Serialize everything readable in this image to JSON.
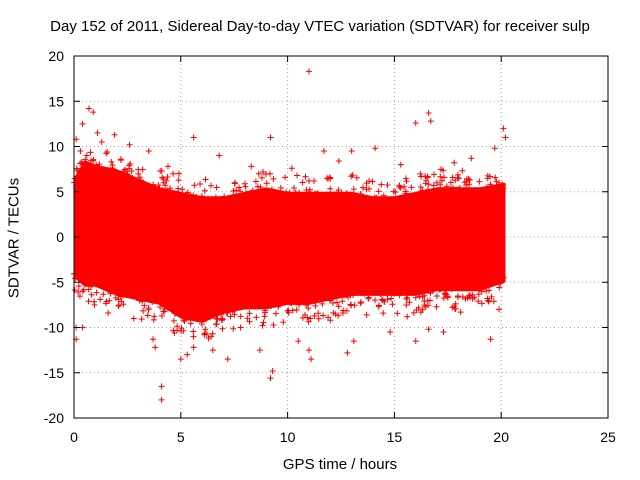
{
  "chart_data": {
    "type": "scatter",
    "title": "Day 152 of 2011, Sidereal Day-to-day VTEC variation (SDTVAR) for receiver sulp",
    "xlabel": "GPS time / hours",
    "ylabel": "SDTVAR / TECUs",
    "xlim": [
      0,
      25
    ],
    "ylim": [
      -20,
      20
    ],
    "xticks": [
      0,
      5,
      10,
      15,
      20,
      25
    ],
    "yticks": [
      -20,
      -15,
      -10,
      -5,
      0,
      5,
      10,
      15,
      20
    ],
    "grid": true,
    "marker": "+",
    "color": "#ff0000",
    "series": [
      {
        "name": "SDTVAR",
        "bulk": [
          {
            "x": 0.0,
            "ymin": -4.5,
            "ymax": 6.5
          },
          {
            "x": 0.5,
            "ymin": -5.5,
            "ymax": 8.5
          },
          {
            "x": 1.0,
            "ymin": -5.5,
            "ymax": 8.0
          },
          {
            "x": 2.0,
            "ymin": -6.5,
            "ymax": 7.5
          },
          {
            "x": 3.0,
            "ymin": -7.0,
            "ymax": 6.5
          },
          {
            "x": 4.0,
            "ymin": -7.5,
            "ymax": 5.5
          },
          {
            "x": 5.0,
            "ymin": -9.0,
            "ymax": 5.0
          },
          {
            "x": 6.0,
            "ymin": -9.5,
            "ymax": 4.5
          },
          {
            "x": 7.0,
            "ymin": -8.5,
            "ymax": 4.5
          },
          {
            "x": 8.0,
            "ymin": -8.0,
            "ymax": 5.0
          },
          {
            "x": 9.0,
            "ymin": -8.0,
            "ymax": 5.5
          },
          {
            "x": 10.0,
            "ymin": -7.5,
            "ymax": 5.0
          },
          {
            "x": 11.0,
            "ymin": -7.5,
            "ymax": 5.0
          },
          {
            "x": 12.0,
            "ymin": -7.0,
            "ymax": 5.0
          },
          {
            "x": 13.0,
            "ymin": -6.5,
            "ymax": 5.0
          },
          {
            "x": 14.0,
            "ymin": -6.5,
            "ymax": 4.5
          },
          {
            "x": 15.0,
            "ymin": -6.5,
            "ymax": 4.5
          },
          {
            "x": 16.0,
            "ymin": -6.5,
            "ymax": 5.0
          },
          {
            "x": 17.0,
            "ymin": -6.0,
            "ymax": 5.5
          },
          {
            "x": 18.0,
            "ymin": -6.0,
            "ymax": 5.5
          },
          {
            "x": 19.0,
            "ymin": -6.0,
            "ymax": 5.5
          },
          {
            "x": 20.2,
            "ymin": -5.0,
            "ymax": 6.0
          }
        ],
        "points": [
          [
            0.1,
            10.8
          ],
          [
            0.3,
            9.5
          ],
          [
            0.4,
            12.5
          ],
          [
            0.7,
            14.2
          ],
          [
            0.9,
            13.8
          ],
          [
            1.1,
            11.5
          ],
          [
            1.3,
            10.5
          ],
          [
            1.9,
            11.3
          ],
          [
            2.6,
            10.2
          ],
          [
            3.5,
            9.5
          ],
          [
            5.6,
            11.0
          ],
          [
            9.2,
            11.0
          ],
          [
            11.0,
            18.3
          ],
          [
            11.7,
            9.5
          ],
          [
            13.0,
            9.5
          ],
          [
            14.1,
            9.8
          ],
          [
            16.0,
            12.6
          ],
          [
            16.6,
            13.7
          ],
          [
            16.7,
            12.8
          ],
          [
            19.7,
            9.8
          ],
          [
            20.1,
            12.0
          ],
          [
            20.2,
            11.0
          ],
          [
            0.1,
            -10.0
          ],
          [
            0.1,
            -11.3
          ],
          [
            0.4,
            -10.0
          ],
          [
            3.7,
            -11.3
          ],
          [
            3.8,
            -12.2
          ],
          [
            4.1,
            -16.5
          ],
          [
            4.1,
            -18.0
          ],
          [
            5.0,
            -13.5
          ],
          [
            5.3,
            -13.0
          ],
          [
            5.6,
            -12.2
          ],
          [
            6.5,
            -12.5
          ],
          [
            7.2,
            -13.5
          ],
          [
            8.7,
            -12.5
          ],
          [
            9.2,
            -15.6
          ],
          [
            9.3,
            -14.8
          ],
          [
            10.5,
            -11.5
          ],
          [
            11.0,
            -12.5
          ],
          [
            11.1,
            -13.5
          ],
          [
            12.8,
            -12.8
          ],
          [
            13.1,
            -11.5
          ],
          [
            14.8,
            -10.5
          ],
          [
            16.0,
            -11.5
          ],
          [
            16.6,
            -10.2
          ],
          [
            17.3,
            -10.5
          ],
          [
            19.5,
            -11.3
          ],
          [
            0.6,
            9.0
          ],
          [
            2.2,
            8.5
          ],
          [
            4.4,
            7.8
          ],
          [
            6.8,
            9.0
          ],
          [
            8.3,
            7.8
          ],
          [
            10.2,
            7.6
          ],
          [
            12.4,
            8.4
          ],
          [
            15.3,
            8.0
          ],
          [
            17.8,
            8.2
          ],
          [
            18.6,
            8.7
          ],
          [
            1.6,
            -8.4
          ],
          [
            2.8,
            -9.0
          ],
          [
            4.7,
            -10.6
          ],
          [
            6.1,
            -10.8
          ],
          [
            7.8,
            -10.0
          ],
          [
            9.8,
            -9.4
          ],
          [
            12.0,
            -9.2
          ],
          [
            13.7,
            -8.6
          ],
          [
            15.6,
            -8.8
          ],
          [
            18.1,
            -8.3
          ],
          [
            19.9,
            -8.0
          ]
        ]
      }
    ]
  }
}
